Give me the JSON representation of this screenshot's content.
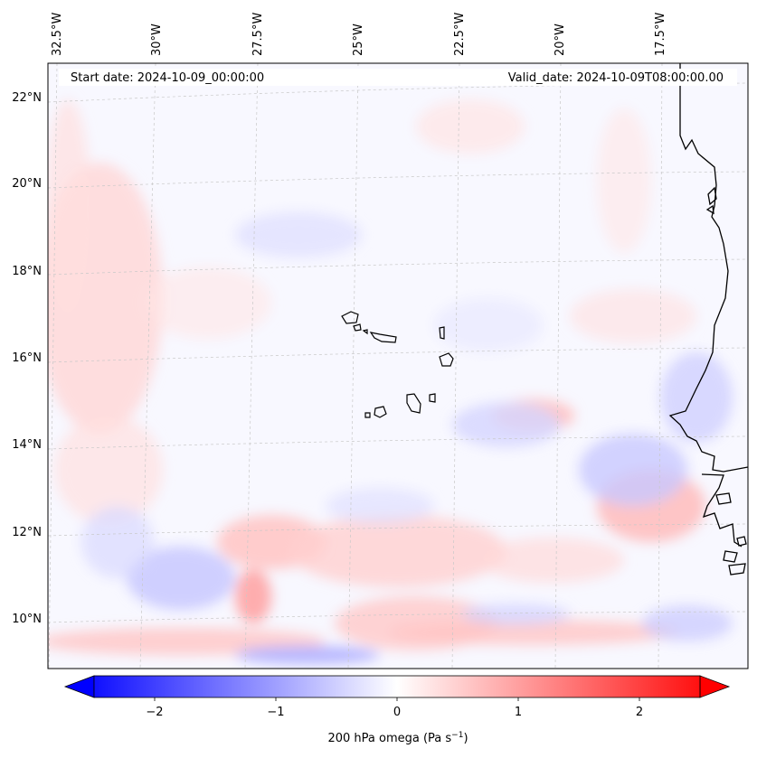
{
  "header": {
    "start_date": "Start date: 2024-10-09_00:00:00",
    "valid_date": "Valid_date: 2024-10-09T08:00:00.00"
  },
  "longitude_labels": [
    "32.5°W",
    "30°W",
    "27.5°W",
    "25°W",
    "22.5°W",
    "20°W",
    "17.5°W"
  ],
  "latitude_labels": [
    "22°N",
    "20°N",
    "18°N",
    "16°N",
    "14°N",
    "12°N",
    "10°N"
  ],
  "colorbar": {
    "ticks": [
      "−2",
      "−1",
      "0",
      "1",
      "2"
    ],
    "label": "200 hPa omega (Pa s",
    "label_sup": "−1",
    "label_end": ")",
    "range": [
      -2.5,
      2.5
    ],
    "colormap": "bwr",
    "colors": {
      "negative": "#0000ff",
      "zero": "#ffffff",
      "positive": "#ff0000"
    }
  },
  "map": {
    "field": "200 hPa omega",
    "region": "Cabo Verde / West African coast",
    "extent_lon": [
      -32.5,
      -16.0
    ],
    "extent_lat": [
      9.0,
      22.8
    ],
    "gridlines": true,
    "gridline_color": "#bbbbbb",
    "coastline_color": "#000000"
  }
}
